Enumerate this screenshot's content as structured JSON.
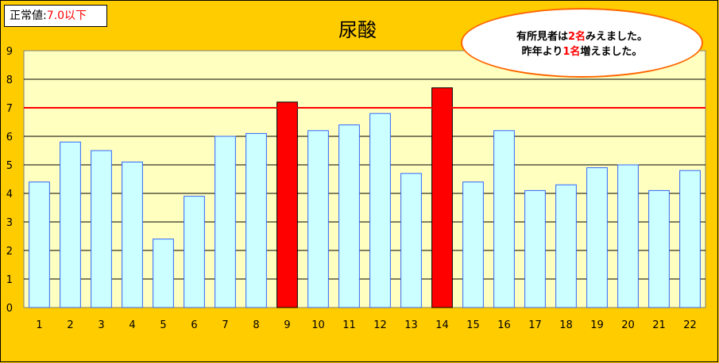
{
  "note": {
    "label": "正常値:",
    "value": "7.0以下"
  },
  "callout": {
    "line1_a": "有所見者は",
    "line1_num": "2名",
    "line1_b": "みえました。",
    "line2_a": "昨年より",
    "line2_num": "1名",
    "line2_b": "増えました。"
  },
  "colors": {
    "background": "#ffcc00",
    "plot_area": "#ffffc0",
    "bar_normal": "#ccffff",
    "bar_abnormal": "#ff0000",
    "bar_border": "#3366ff",
    "threshold_line": "#ff0000"
  },
  "chart_data": {
    "type": "bar",
    "title": "尿酸",
    "categories": [
      "1",
      "2",
      "3",
      "4",
      "5",
      "6",
      "7",
      "8",
      "9",
      "10",
      "11",
      "12",
      "13",
      "14",
      "15",
      "16",
      "17",
      "18",
      "19",
      "20",
      "21",
      "22"
    ],
    "values": [
      4.4,
      5.8,
      5.5,
      5.1,
      2.4,
      3.9,
      6.0,
      6.1,
      7.2,
      6.2,
      6.4,
      6.8,
      4.7,
      7.7,
      4.4,
      6.2,
      4.1,
      4.3,
      4.9,
      5.0,
      4.1,
      4.8
    ],
    "threshold": 7.0,
    "ylim": [
      0,
      9
    ],
    "yticks": [
      "0",
      "1",
      "2",
      "3",
      "4",
      "5",
      "6",
      "7",
      "8",
      "9"
    ],
    "grid": true,
    "xlabel": "",
    "ylabel": ""
  }
}
